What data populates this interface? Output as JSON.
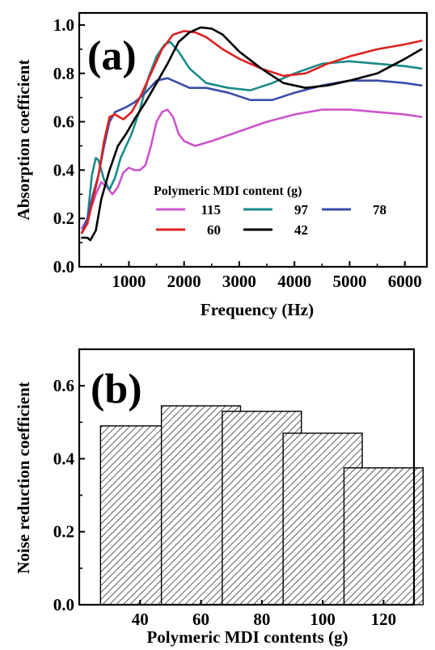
{
  "chart_data": [
    {
      "type": "line",
      "panel_label": "(a)",
      "xlabel": "Frequency (Hz)",
      "ylabel": "Absorption coefficient",
      "xlim": [
        100,
        6400
      ],
      "ylim": [
        0,
        1.05
      ],
      "xticks": [
        1000,
        2000,
        3000,
        4000,
        5000,
        6000
      ],
      "yticks": [
        0.0,
        0.2,
        0.4,
        0.6,
        0.8,
        1.0
      ],
      "xtick_labels": [
        "1000",
        "2000",
        "3000",
        "4000",
        "5000",
        "6000"
      ],
      "ytick_labels": [
        "0.0",
        "0.2",
        "0.4",
        "0.6",
        "0.8",
        "1.0"
      ],
      "grid": false,
      "legend": {
        "title": "Polymeric MDI content (g)",
        "placement": "lower-center"
      },
      "series": [
        {
          "name": "115",
          "color": "#cc55cc",
          "points": [
            [
              150,
              0.16
            ],
            [
              250,
              0.2
            ],
            [
              400,
              0.3
            ],
            [
              500,
              0.35
            ],
            [
              600,
              0.33
            ],
            [
              700,
              0.3
            ],
            [
              800,
              0.33
            ],
            [
              900,
              0.39
            ],
            [
              1000,
              0.41
            ],
            [
              1100,
              0.4
            ],
            [
              1200,
              0.4
            ],
            [
              1300,
              0.42
            ],
            [
              1400,
              0.5
            ],
            [
              1500,
              0.6
            ],
            [
              1600,
              0.64
            ],
            [
              1700,
              0.65
            ],
            [
              1800,
              0.62
            ],
            [
              1900,
              0.55
            ],
            [
              2000,
              0.52
            ],
            [
              2200,
              0.5
            ],
            [
              2500,
              0.52
            ],
            [
              3000,
              0.56
            ],
            [
              3500,
              0.6
            ],
            [
              4000,
              0.63
            ],
            [
              4500,
              0.65
            ],
            [
              5000,
              0.65
            ],
            [
              5500,
              0.64
            ],
            [
              6000,
              0.63
            ],
            [
              6300,
              0.62
            ]
          ]
        },
        {
          "name": "97",
          "color": "#1a8a8a",
          "points": [
            [
              150,
              0.14
            ],
            [
              250,
              0.2
            ],
            [
              330,
              0.38
            ],
            [
              400,
              0.45
            ],
            [
              450,
              0.44
            ],
            [
              550,
              0.36
            ],
            [
              650,
              0.32
            ],
            [
              750,
              0.37
            ],
            [
              850,
              0.45
            ],
            [
              950,
              0.5
            ],
            [
              1050,
              0.55
            ],
            [
              1200,
              0.65
            ],
            [
              1350,
              0.78
            ],
            [
              1500,
              0.87
            ],
            [
              1650,
              0.92
            ],
            [
              1750,
              0.93
            ],
            [
              1900,
              0.89
            ],
            [
              2100,
              0.82
            ],
            [
              2400,
              0.76
            ],
            [
              2800,
              0.74
            ],
            [
              3200,
              0.73
            ],
            [
              3600,
              0.76
            ],
            [
              4000,
              0.8
            ],
            [
              4500,
              0.84
            ],
            [
              5000,
              0.85
            ],
            [
              5500,
              0.84
            ],
            [
              6000,
              0.83
            ],
            [
              6300,
              0.82
            ]
          ]
        },
        {
          "name": "78",
          "color": "#3a4ca8",
          "points": [
            [
              150,
              0.14
            ],
            [
              250,
              0.2
            ],
            [
              350,
              0.3
            ],
            [
              450,
              0.38
            ],
            [
              550,
              0.5
            ],
            [
              650,
              0.6
            ],
            [
              750,
              0.64
            ],
            [
              850,
              0.65
            ],
            [
              950,
              0.66
            ],
            [
              1100,
              0.68
            ],
            [
              1300,
              0.72
            ],
            [
              1500,
              0.77
            ],
            [
              1700,
              0.78
            ],
            [
              1900,
              0.76
            ],
            [
              2100,
              0.74
            ],
            [
              2400,
              0.74
            ],
            [
              2800,
              0.72
            ],
            [
              3200,
              0.69
            ],
            [
              3600,
              0.69
            ],
            [
              4000,
              0.72
            ],
            [
              4500,
              0.75
            ],
            [
              5000,
              0.77
            ],
            [
              5500,
              0.77
            ],
            [
              6000,
              0.76
            ],
            [
              6300,
              0.75
            ]
          ]
        },
        {
          "name": "60",
          "color": "#e02020",
          "points": [
            [
              150,
              0.14
            ],
            [
              250,
              0.18
            ],
            [
              350,
              0.28
            ],
            [
              450,
              0.38
            ],
            [
              550,
              0.52
            ],
            [
              650,
              0.62
            ],
            [
              750,
              0.63
            ],
            [
              900,
              0.61
            ],
            [
              1050,
              0.64
            ],
            [
              1200,
              0.7
            ],
            [
              1400,
              0.8
            ],
            [
              1600,
              0.9
            ],
            [
              1800,
              0.96
            ],
            [
              2000,
              0.975
            ],
            [
              2200,
              0.97
            ],
            [
              2400,
              0.95
            ],
            [
              2700,
              0.9
            ],
            [
              3000,
              0.86
            ],
            [
              3400,
              0.82
            ],
            [
              3800,
              0.79
            ],
            [
              4200,
              0.8
            ],
            [
              4600,
              0.84
            ],
            [
              5000,
              0.87
            ],
            [
              5500,
              0.9
            ],
            [
              6000,
              0.92
            ],
            [
              6300,
              0.935
            ]
          ]
        },
        {
          "name": "42",
          "color": "#000000",
          "points": [
            [
              150,
              0.12
            ],
            [
              250,
              0.12
            ],
            [
              300,
              0.11
            ],
            [
              400,
              0.15
            ],
            [
              500,
              0.28
            ],
            [
              650,
              0.4
            ],
            [
              800,
              0.5
            ],
            [
              950,
              0.55
            ],
            [
              1100,
              0.61
            ],
            [
              1300,
              0.68
            ],
            [
              1500,
              0.76
            ],
            [
              1700,
              0.84
            ],
            [
              1900,
              0.93
            ],
            [
              2100,
              0.97
            ],
            [
              2300,
              0.99
            ],
            [
              2500,
              0.985
            ],
            [
              2700,
              0.96
            ],
            [
              3000,
              0.89
            ],
            [
              3400,
              0.82
            ],
            [
              3800,
              0.76
            ],
            [
              4200,
              0.74
            ],
            [
              4600,
              0.75
            ],
            [
              5000,
              0.77
            ],
            [
              5500,
              0.8
            ],
            [
              6000,
              0.86
            ],
            [
              6300,
              0.9
            ]
          ]
        }
      ]
    },
    {
      "type": "bar",
      "panel_label": "(b)",
      "xlabel": "Polymeric MDI contents (g)",
      "ylabel": "Noise reduction coefficient",
      "categories": [
        "40",
        "60",
        "80",
        "100",
        "120"
      ],
      "values": [
        0.49,
        0.545,
        0.53,
        0.47,
        0.375
      ],
      "xlim": [
        20,
        130
      ],
      "ylim": [
        0,
        0.7
      ],
      "yticks": [
        0.0,
        0.2,
        0.4,
        0.6
      ],
      "ytick_labels": [
        "0.0",
        "0.2",
        "0.4",
        "0.6"
      ],
      "bar_pattern": "diagonal-hatch",
      "grid": false
    }
  ]
}
